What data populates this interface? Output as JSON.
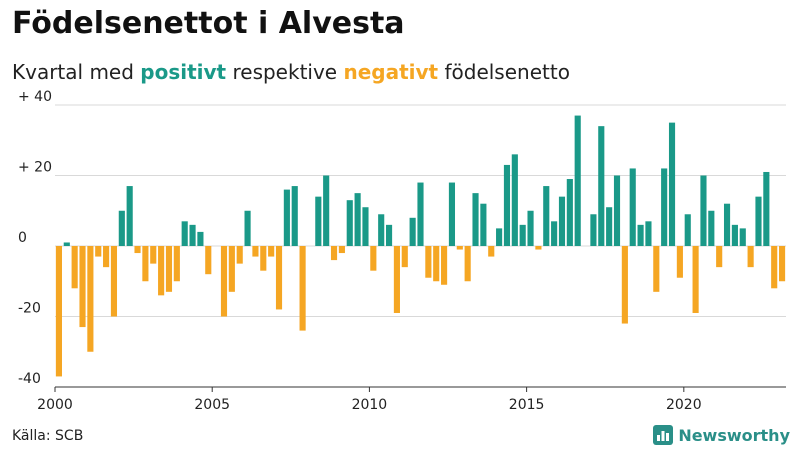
{
  "title": "Födelsenettot i Alvesta",
  "subtitle": {
    "prefix": "Kvartal med ",
    "positive": "positivt",
    "middle": " respektive ",
    "negative": "negativt",
    "suffix": " födelsenetto"
  },
  "source": "Källa: SCB",
  "brand": "Newsworthy",
  "colors": {
    "positive": "#1a9988",
    "negative": "#f5a623",
    "grid": "#d9d9d9",
    "axis": "#333333",
    "brand": "#2a8f88"
  },
  "chart_data": {
    "type": "bar",
    "x_start": 2000,
    "periods_per_year": 4,
    "values": [
      -37,
      1,
      -12,
      -23,
      -30,
      -3,
      -6,
      -20,
      10,
      17,
      -2,
      -10,
      -5,
      -14,
      -13,
      -10,
      7,
      6,
      4,
      -8,
      0,
      -20,
      -13,
      -5,
      10,
      -3,
      -7,
      -3,
      -18,
      16,
      17,
      -24,
      0,
      14,
      20,
      -4,
      -2,
      13,
      15,
      11,
      -7,
      9,
      6,
      -19,
      -6,
      8,
      18,
      -9,
      -10,
      -11,
      18,
      -1,
      -10,
      15,
      12,
      -3,
      5,
      23,
      26,
      6,
      10,
      -1,
      17,
      7,
      14,
      19,
      37,
      0,
      9,
      34,
      11,
      20,
      -22,
      22,
      6,
      7,
      -13,
      22,
      35,
      -9,
      9,
      -19,
      20,
      10,
      -6,
      12,
      6,
      5,
      -6,
      14,
      21,
      -12,
      -10
    ],
    "ylim": [
      -40,
      40
    ],
    "yticks": [
      {
        "value": 40,
        "label": "+ 40"
      },
      {
        "value": 20,
        "label": "+ 20"
      },
      {
        "value": 0,
        "label": "0"
      },
      {
        "value": -20,
        "label": "-20"
      },
      {
        "value": -40,
        "label": "-40"
      }
    ],
    "xticks": [
      {
        "value": 2000,
        "label": "2000"
      },
      {
        "value": 2005,
        "label": "2005"
      },
      {
        "value": 2010,
        "label": "2010"
      },
      {
        "value": 2015,
        "label": "2015"
      },
      {
        "value": 2020,
        "label": "2020"
      }
    ],
    "grid": true,
    "title": "Födelsenettot i Alvesta",
    "xlabel": "",
    "ylabel": ""
  }
}
